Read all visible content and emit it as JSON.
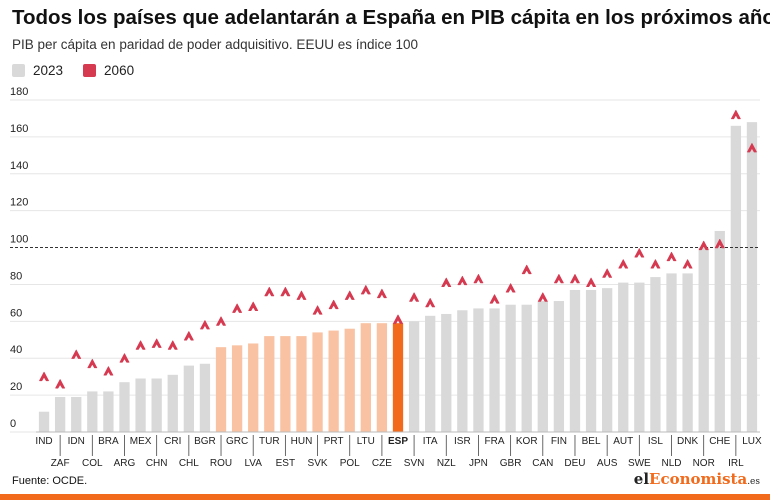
{
  "header": {
    "title": "Todos los países que adelantarán a España en PIB cápita en los próximos años",
    "subtitle": "PIB per cápita en paridad de poder adquisitivo. EEUU es índice 100"
  },
  "legend": {
    "item_2023": "2023",
    "item_2060": "2060"
  },
  "footer": {
    "source": "Fuente: OCDE.",
    "logo_prefix": "el",
    "logo_accent": "Economista",
    "logo_suffix": ".es"
  },
  "colors": {
    "bar_default": "#d9d9d9",
    "bar_highlight": "#f9c3a3",
    "bar_spain": "#f26a1b",
    "marker_2060": "#d63a51",
    "bottom_bar": "#f26a1b"
  },
  "chart_data": {
    "type": "bar",
    "title": "Todos los países que adelantarán a España en PIB cápita en los próximos años",
    "subtitle": "PIB per cápita en paridad de poder adquisitivo. EEUU es índice 100",
    "ylim": [
      0,
      180
    ],
    "yticks": [
      0,
      20,
      40,
      60,
      80,
      100,
      120,
      140,
      160,
      180
    ],
    "grid": true,
    "reference_line": 100,
    "legend_position": "top-left",
    "categories": [
      "IND",
      "ZAF",
      "IDN",
      "COL",
      "BRA",
      "ARG",
      "MEX",
      "CHN",
      "CRI",
      "CHL",
      "BGR",
      "ROU",
      "GRC",
      "LVA",
      "TUR",
      "EST",
      "HUN",
      "SVK",
      "PRT",
      "POL",
      "LTU",
      "CZE",
      "ESP",
      "SVN",
      "ITA",
      "NZL",
      "ISR",
      "JPN",
      "FRA",
      "GBR",
      "KOR",
      "CAN",
      "FIN",
      "DEU",
      "BEL",
      "AUS",
      "AUT",
      "SWE",
      "ISL",
      "NLD",
      "DNK",
      "NOR",
      "CHE",
      "IRL",
      "LUX"
    ],
    "highlight": [
      "ROU",
      "GRC",
      "LVA",
      "TUR",
      "EST",
      "HUN",
      "SVK",
      "PRT",
      "POL",
      "LTU",
      "CZE"
    ],
    "focus": "ESP",
    "series": [
      {
        "name": "2023",
        "values": [
          11,
          19,
          19,
          22,
          22,
          27,
          29,
          29,
          31,
          36,
          37,
          46,
          47,
          48,
          52,
          52,
          52,
          54,
          55,
          56,
          59,
          59,
          59,
          60,
          63,
          64,
          66,
          67,
          67,
          69,
          69,
          71,
          71,
          77,
          77,
          78,
          81,
          81,
          84,
          86,
          86,
          100,
          109,
          166,
          168
        ]
      },
      {
        "name": "2060",
        "values": [
          30,
          26,
          42,
          37,
          33,
          40,
          47,
          48,
          47,
          52,
          58,
          60,
          67,
          68,
          76,
          76,
          74,
          66,
          69,
          74,
          77,
          75,
          61,
          73,
          70,
          81,
          82,
          83,
          72,
          78,
          88,
          73,
          83,
          83,
          81,
          86,
          91,
          97,
          91,
          95,
          91,
          101,
          102,
          172,
          154
        ]
      }
    ]
  }
}
